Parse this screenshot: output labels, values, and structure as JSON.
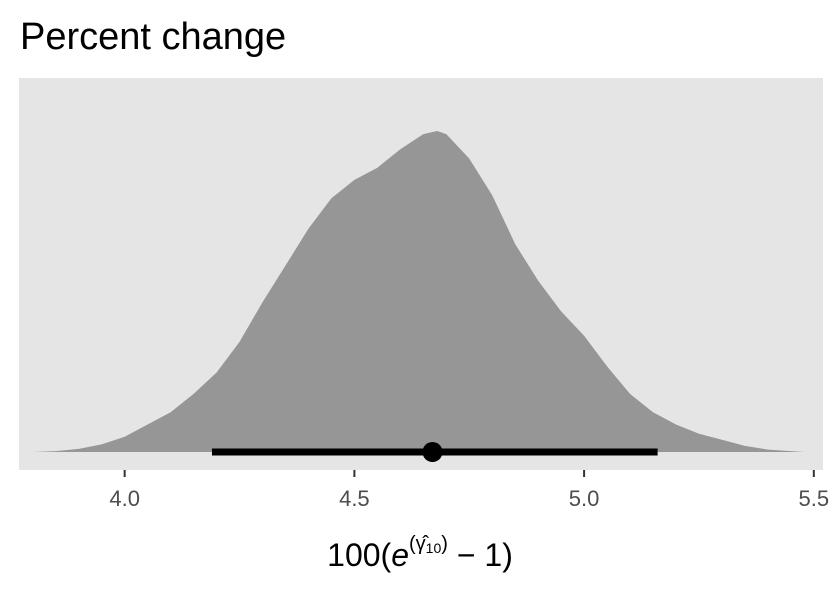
{
  "chart_data": {
    "type": "area",
    "title": "Percent change",
    "xlabel": {
      "prefix": "100(",
      "base": "e",
      "sup_open": "(",
      "sup_symbol": "γ̂",
      "sup_subscript": "10",
      "sup_close": ")",
      "suffix": " − 1)"
    },
    "ylabel": "",
    "xlim": [
      3.77,
      5.52
    ],
    "ylim": [
      0,
      1.05
    ],
    "x_ticks": [
      4.0,
      4.5,
      5.0,
      5.5
    ],
    "x_tick_labels": [
      "4.0",
      "4.5",
      "5.0",
      "5.5"
    ],
    "y_ticks": [],
    "grid": false,
    "density": {
      "x": [
        3.8,
        3.85,
        3.9,
        3.95,
        4.0,
        4.05,
        4.1,
        4.15,
        4.2,
        4.25,
        4.3,
        4.35,
        4.4,
        4.45,
        4.5,
        4.55,
        4.6,
        4.65,
        4.68,
        4.7,
        4.75,
        4.8,
        4.85,
        4.9,
        4.95,
        5.0,
        5.05,
        5.1,
        5.15,
        5.2,
        5.25,
        5.3,
        5.35,
        5.4,
        5.45,
        5.48
      ],
      "y": [
        0.0,
        0.003,
        0.01,
        0.025,
        0.05,
        0.09,
        0.13,
        0.19,
        0.26,
        0.36,
        0.49,
        0.61,
        0.73,
        0.83,
        0.89,
        0.93,
        0.99,
        1.04,
        1.05,
        1.04,
        0.96,
        0.84,
        0.68,
        0.56,
        0.46,
        0.38,
        0.28,
        0.19,
        0.13,
        0.09,
        0.06,
        0.04,
        0.02,
        0.008,
        0.003,
        0.0
      ]
    },
    "point_estimate": 4.67,
    "interval": [
      4.19,
      5.16
    ],
    "colors": {
      "panel_background": "#e5e5e5",
      "density_fill": "#969696",
      "interval": "#000000",
      "tick": "#333333",
      "tick_label": "#4d4d4d"
    }
  }
}
